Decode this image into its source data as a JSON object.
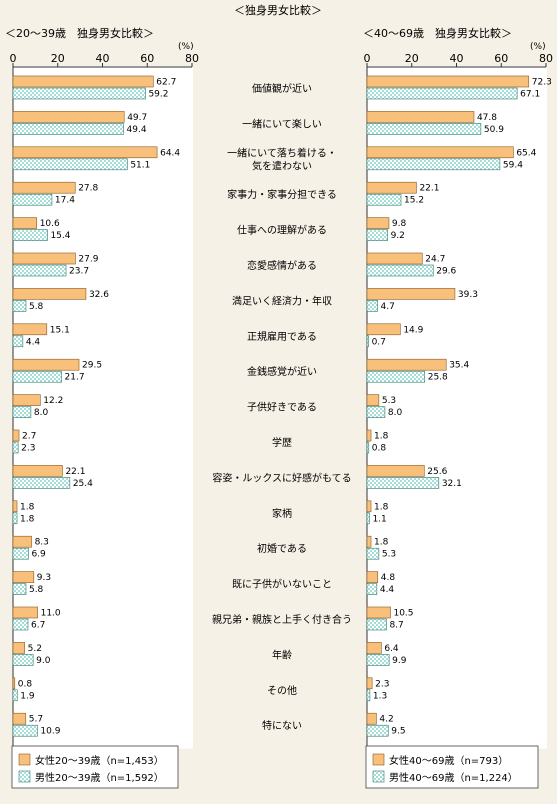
{
  "header": {
    "main_title": "＜独身男女比較＞",
    "left_title": "＜20～39歳　独身男女比較＞",
    "right_title": "＜40～69歳　独身男女比較＞",
    "unit": "(%)"
  },
  "colors": {
    "female_fill": "#f8c07a",
    "female_stroke": "#8a5a20",
    "male_fill": "#a6ddd8",
    "male_pattern": "#ffffff",
    "male_stroke": "#2d7b74",
    "background": "#f6f1e6",
    "panel": "#ffffff"
  },
  "chart_data": [
    {
      "type": "bar",
      "orientation": "horizontal",
      "title": "＜20～39歳　独身男女比較＞",
      "xlim": [
        0,
        80
      ],
      "ticks": [
        0,
        20,
        40,
        60,
        80
      ],
      "categories": [
        "価値観が近い",
        "一緒にいて楽しい",
        "一緒にいて落ち着ける・気を遣わない",
        "家事力・家事分担できる",
        "仕事への理解がある",
        "恋愛感情がある",
        "満足いく経済力・年収",
        "正規雇用である",
        "金銭感覚が近い",
        "子供好きである",
        "学歴",
        "容姿・ルックスに好感がもてる",
        "家柄",
        "初婚である",
        "既に子供がいないこと",
        "親兄弟・親族と上手く付き合う",
        "年齢",
        "その他",
        "特にない"
      ],
      "series": [
        {
          "name": "女性20～39歳（n=1,453）",
          "values": [
            62.7,
            49.7,
            64.4,
            27.8,
            10.6,
            27.9,
            32.6,
            15.1,
            29.5,
            12.2,
            2.7,
            22.1,
            1.8,
            8.3,
            9.3,
            11.0,
            5.2,
            0.8,
            5.7
          ]
        },
        {
          "name": "男性20～39歳（n=1,592）",
          "values": [
            59.2,
            49.4,
            51.1,
            17.4,
            15.4,
            23.7,
            5.8,
            4.4,
            21.7,
            8.0,
            2.3,
            25.4,
            1.8,
            6.9,
            5.8,
            6.7,
            9.0,
            1.9,
            10.9
          ]
        }
      ]
    },
    {
      "type": "bar",
      "orientation": "horizontal",
      "title": "＜40～69歳　独身男女比較＞",
      "xlim": [
        0,
        80
      ],
      "ticks": [
        0,
        20,
        40,
        60,
        80
      ],
      "categories": [
        "価値観が近い",
        "一緒にいて楽しい",
        "一緒にいて落ち着ける・気を遣わない",
        "家事力・家事分担できる",
        "仕事への理解がある",
        "恋愛感情がある",
        "満足いく経済力・年収",
        "正規雇用である",
        "金銭感覚が近い",
        "子供好きである",
        "学歴",
        "容姿・ルックスに好感がもてる",
        "家柄",
        "初婚である",
        "既に子供がいないこと",
        "親兄弟・親族と上手く付き合う",
        "年齢",
        "その他",
        "特にない"
      ],
      "series": [
        {
          "name": "女性40～69歳（n=793）",
          "values": [
            72.3,
            47.8,
            65.4,
            22.1,
            9.8,
            24.7,
            39.3,
            14.9,
            35.4,
            5.3,
            1.8,
            25.6,
            1.8,
            1.8,
            4.8,
            10.5,
            6.4,
            2.3,
            4.2
          ]
        },
        {
          "name": "男性40～69歳（n=1,224）",
          "values": [
            67.1,
            50.9,
            59.4,
            15.2,
            9.2,
            29.6,
            4.7,
            0.7,
            25.8,
            8.0,
            0.8,
            32.1,
            1.1,
            5.3,
            4.4,
            8.7,
            9.9,
            1.3,
            9.5
          ]
        }
      ]
    }
  ],
  "category_lines": [
    [
      "価値観が近い"
    ],
    [
      "一緒にいて楽しい"
    ],
    [
      "一緒にいて落ち着ける・",
      "気を遣わない"
    ],
    [
      "家事力・家事分担できる"
    ],
    [
      "仕事への理解がある"
    ],
    [
      "恋愛感情がある"
    ],
    [
      "満足いく経済力・年収"
    ],
    [
      "正規雇用である"
    ],
    [
      "金銭感覚が近い"
    ],
    [
      "子供好きである"
    ],
    [
      "学歴"
    ],
    [
      "容姿・ルックスに好感がもてる"
    ],
    [
      "家柄"
    ],
    [
      "初婚である"
    ],
    [
      "既に子供がいないこと"
    ],
    [
      "親兄弟・親族と上手く付き合う"
    ],
    [
      "年齢"
    ],
    [
      "その他"
    ],
    [
      "特にない"
    ]
  ]
}
